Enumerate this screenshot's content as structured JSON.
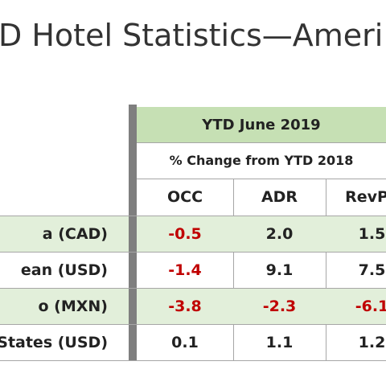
{
  "title": "D Hotel Statistics—Ameri",
  "table": {
    "period": "YTD June 2019",
    "subheader": "% Change from YTD 2018",
    "columns": [
      "OCC",
      "ADR",
      "RevPA"
    ],
    "rows": [
      {
        "label": "a (CAD)",
        "values": [
          "-0.5",
          "2.0",
          "1.5"
        ]
      },
      {
        "label": "ean (USD)",
        "values": [
          "-1.4",
          "9.1",
          "7.5"
        ]
      },
      {
        "label": "o (MXN)",
        "values": [
          "-3.8",
          "-2.3",
          "-6.1"
        ]
      },
      {
        "label": "States (USD)",
        "values": [
          "0.1",
          "1.1",
          "1.2"
        ]
      }
    ]
  }
}
